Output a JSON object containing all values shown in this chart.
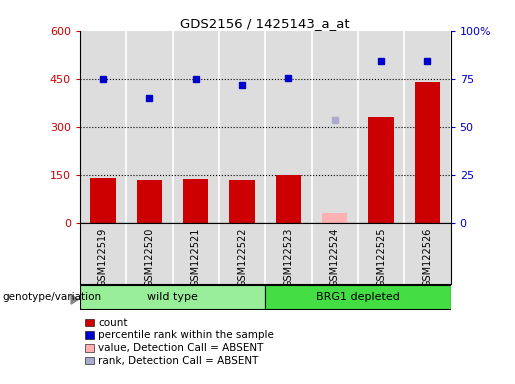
{
  "title": "GDS2156 / 1425143_a_at",
  "samples": [
    "GSM122519",
    "GSM122520",
    "GSM122521",
    "GSM122522",
    "GSM122523",
    "GSM122524",
    "GSM122525",
    "GSM122526"
  ],
  "bar_values": [
    140,
    135,
    137,
    133,
    148,
    null,
    330,
    440
  ],
  "bar_absent_values": [
    null,
    null,
    null,
    null,
    null,
    30,
    null,
    null
  ],
  "rank_values": [
    448,
    390,
    449,
    430,
    453,
    null,
    505,
    505
  ],
  "rank_absent_values": [
    null,
    null,
    null,
    null,
    null,
    320,
    null,
    null
  ],
  "bar_color": "#cc0000",
  "bar_absent_color": "#ffb0b0",
  "rank_color": "#0000cc",
  "rank_absent_color": "#aaaacc",
  "groups": [
    {
      "label": "wild type",
      "start": 0,
      "end": 4,
      "color": "#99ee99"
    },
    {
      "label": "BRG1 depleted",
      "start": 4,
      "end": 8,
      "color": "#44dd44"
    }
  ],
  "group_label": "genotype/variation",
  "ylim_left": [
    0,
    600
  ],
  "ylim_right": [
    0,
    100
  ],
  "yticks_left": [
    0,
    150,
    300,
    450,
    600
  ],
  "yticks_right": [
    0,
    25,
    50,
    75,
    100
  ],
  "ytick_labels_left": [
    "0",
    "150",
    "300",
    "450",
    "600"
  ],
  "ytick_labels_right": [
    "0",
    "25",
    "50",
    "75",
    "100%"
  ],
  "hlines": [
    150,
    300,
    450
  ],
  "legend_items": [
    {
      "label": "count",
      "color": "#cc0000"
    },
    {
      "label": "percentile rank within the sample",
      "color": "#0000cc"
    },
    {
      "label": "value, Detection Call = ABSENT",
      "color": "#ffb0b0"
    },
    {
      "label": "rank, Detection Call = ABSENT",
      "color": "#aaaacc"
    }
  ],
  "bar_width": 0.55,
  "plot_bg_color": "#dddddd",
  "tick_label_bg_color": "#dddddd",
  "fig_bg_color": "#ffffff"
}
